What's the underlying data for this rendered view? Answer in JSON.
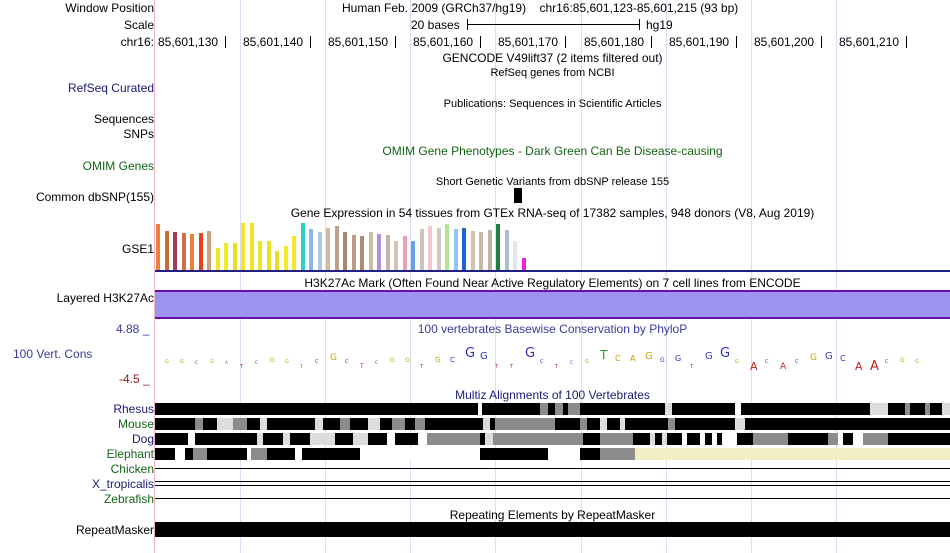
{
  "header": {
    "window_position_label": "Window Position",
    "scale_label": "Scale",
    "chrom_label": "chr16:",
    "assembly": "Human Feb. 2009 (GRCh37/hg19)",
    "position": "chr16:85,601,123-85,601,215 (93 bp)",
    "scale_text": "20 bases",
    "db": "hg19",
    "ruler_ticks": [
      "85,601,130",
      "85,601,140",
      "85,601,150",
      "85,601,160",
      "85,601,170",
      "85,601,180",
      "85,601,190",
      "85,601,200",
      "85,601,210"
    ]
  },
  "tracks": {
    "gencode_title": "GENCODE V49lift37 (2 items filtered out)",
    "refseq": {
      "label": "RefSeq Curated",
      "title": "RefSeq genes from NCBI",
      "color": "#1a1a7a"
    },
    "publications_title": "Publications: Sequences in Scientific Articles",
    "sequences_label": "Sequences",
    "snps_label": "SNPs",
    "omim": {
      "label": "OMIM Genes",
      "title": "OMIM Gene Phenotypes - Dark Green Can Be Disease-causing",
      "color": "#146414"
    },
    "dbsnp": {
      "label": "Common dbSNP(155)",
      "title": "Short Genetic Variants from dbSNP release 155"
    },
    "gtex": {
      "label": "GSE1",
      "title": "Gene Expression in 54 tissues from GTEx RNA-seq of 17382 samples, 948 donors (V8, Aug 2019)",
      "bars": [
        {
          "c": "#f07f3c",
          "h": 0.96
        },
        {
          "c": "#c86a3c",
          "h": 0.81
        },
        {
          "c": "#a03c64",
          "h": 0.79
        },
        {
          "c": "#d26e46",
          "h": 0.77
        },
        {
          "c": "#ee7d3c",
          "h": 0.74
        },
        {
          "c": "#e6421e",
          "h": 0.77
        },
        {
          "c": "#c8a07d",
          "h": 0.82
        },
        {
          "c": "#f4e61e",
          "h": 0.45
        },
        {
          "c": "#f0eb28",
          "h": 0.56
        },
        {
          "c": "#e6e11e",
          "h": 0.56
        },
        {
          "c": "#eee628",
          "h": 0.98
        },
        {
          "c": "#f0e61e",
          "h": 0.98
        },
        {
          "c": "#ebe628",
          "h": 0.6
        },
        {
          "c": "#eae221",
          "h": 0.6
        },
        {
          "c": "#e6dc2d",
          "h": 0.4
        },
        {
          "c": "#f0eb28",
          "h": 0.5
        },
        {
          "c": "#f5e628",
          "h": 0.7
        },
        {
          "c": "#2dcdc8",
          "h": 0.97
        },
        {
          "c": "#8cb4e6",
          "h": 0.86
        },
        {
          "c": "#aec8e6",
          "h": 0.8
        },
        {
          "c": "#cdb9a5",
          "h": 0.88
        },
        {
          "c": "#bea08c",
          "h": 0.92
        },
        {
          "c": "#a5876e",
          "h": 0.8
        },
        {
          "c": "#be9b82",
          "h": 0.72
        },
        {
          "c": "#a88c78",
          "h": 0.7
        },
        {
          "c": "#cdb9a5",
          "h": 0.8
        },
        {
          "c": "#b48ce6",
          "h": 0.74
        },
        {
          "c": "#c8b4a0",
          "h": 0.72
        },
        {
          "c": "#d2c3b4",
          "h": 0.6
        },
        {
          "c": "#e8a0b4",
          "h": 0.7
        },
        {
          "c": "#64a0e6",
          "h": 0.6
        },
        {
          "c": "#cdc3b9",
          "h": 0.86
        },
        {
          "c": "#f0c8c8",
          "h": 0.92
        },
        {
          "c": "#d2c8be",
          "h": 0.88
        },
        {
          "c": "#b4e696",
          "h": 0.96
        },
        {
          "c": "#8cc8f0",
          "h": 0.86
        },
        {
          "c": "#1e64d2",
          "h": 0.88
        },
        {
          "c": "#d2c3aa",
          "h": 0.82
        },
        {
          "c": "#c8b9a5",
          "h": 0.8
        },
        {
          "c": "#c3b4a0",
          "h": 0.84
        },
        {
          "c": "#208040",
          "h": 0.96
        },
        {
          "c": "#aebed2",
          "h": 0.84
        },
        {
          "c": "#e6e6e6",
          "h": 0.6
        },
        {
          "c": "#f01ee6",
          "h": 0.26
        }
      ]
    },
    "h3k27ac": {
      "label": "Layered H3K27Ac",
      "title": "H3K27Ac Mark (Often Found Near Active Regulatory Elements) on 7 cell lines from ENCODE",
      "color": "#9c94f0",
      "border_color": "#6a0dad"
    },
    "cons": {
      "label": "100 Vert. Cons",
      "ymax": "4.88 _",
      "ymin": "-4.5 _",
      "title": "100 vertebrates Basewise Conservation by PhyloP",
      "label_color": "#3a3aa0",
      "ymin_color": "#8b1a1a",
      "bases": [
        {
          "t": "G",
          "c": "#c8a000",
          "s": 5
        },
        {
          "t": "G",
          "c": "#c8a000",
          "s": 5
        },
        {
          "t": "C",
          "c": "#3030c0",
          "s": 4
        },
        {
          "t": "G",
          "c": "#c8a000",
          "s": 5
        },
        {
          "t": "A",
          "c": "#20a020",
          "s": 4
        },
        {
          "t": "T",
          "c": "#c02020",
          "s": 5
        },
        {
          "t": "C",
          "c": "#3030c0",
          "s": 4
        },
        {
          "t": "G",
          "c": "#c8a000",
          "s": 6
        },
        {
          "t": "G",
          "c": "#c8a000",
          "s": 5
        },
        {
          "t": "T",
          "c": "#c02020",
          "s": 4
        },
        {
          "t": "C",
          "c": "#3030c0",
          "s": 5
        },
        {
          "t": "G",
          "c": "#c8a000",
          "s": 9
        },
        {
          "t": "C",
          "c": "#3030c0",
          "s": 5
        },
        {
          "t": "T",
          "c": "#c02020",
          "s": 6
        },
        {
          "t": "C",
          "c": "#3030c0",
          "s": 4
        },
        {
          "t": "G",
          "c": "#c8a000",
          "s": 6
        },
        {
          "t": "G",
          "c": "#c8a000",
          "s": 6
        },
        {
          "t": "T",
          "c": "#c02020",
          "s": 5
        },
        {
          "t": "G",
          "c": "#c8a000",
          "s": 7
        },
        {
          "t": "C",
          "c": "#3030c0",
          "s": 7
        },
        {
          "t": "G",
          "c": "#3030c0",
          "s": 13
        },
        {
          "t": "G",
          "c": "#3030c0",
          "s": 10
        },
        {
          "t": "T",
          "c": "#c02020",
          "s": 5
        },
        {
          "t": "T",
          "c": "#c02020",
          "s": 5
        },
        {
          "t": "G",
          "c": "#3030c0",
          "s": 13
        },
        {
          "t": "C",
          "c": "#3030c0",
          "s": 5
        },
        {
          "t": "T",
          "c": "#c02020",
          "s": 5
        },
        {
          "t": "C",
          "c": "#3030c0",
          "s": 4
        },
        {
          "t": "G",
          "c": "#c8a000",
          "s": 5
        },
        {
          "t": "T",
          "c": "#20a020",
          "s": 12
        },
        {
          "t": "C",
          "c": "#c8a000",
          "s": 8
        },
        {
          "t": "A",
          "c": "#c8a000",
          "s": 8
        },
        {
          "t": "G",
          "c": "#c8a000",
          "s": 10
        },
        {
          "t": "G",
          "c": "#3030c0",
          "s": 6
        },
        {
          "t": "G",
          "c": "#3030c0",
          "s": 8
        },
        {
          "t": "T",
          "c": "#c02020",
          "s": 5
        },
        {
          "t": "G",
          "c": "#3030c0",
          "s": 10
        },
        {
          "t": "G",
          "c": "#3030c0",
          "s": 13
        },
        {
          "t": "G",
          "c": "#c8a000",
          "s": 5
        },
        {
          "t": "A",
          "c": "#c02020",
          "s": 11
        },
        {
          "t": "C",
          "c": "#3030c0",
          "s": 5
        },
        {
          "t": "A",
          "c": "#c02020",
          "s": 9
        },
        {
          "t": "C",
          "c": "#3030c0",
          "s": 5
        },
        {
          "t": "G",
          "c": "#c8a000",
          "s": 9
        },
        {
          "t": "G",
          "c": "#3030c0",
          "s": 10
        },
        {
          "t": "C",
          "c": "#3030c0",
          "s": 8
        },
        {
          "t": "A",
          "c": "#c02020",
          "s": 11
        },
        {
          "t": "A",
          "c": "#c02020",
          "s": 13
        },
        {
          "t": "C",
          "c": "#3030c0",
          "s": 5
        },
        {
          "t": "G",
          "c": "#c8a000",
          "s": 6
        },
        {
          "t": "G",
          "c": "#c8a000",
          "s": 5
        }
      ]
    },
    "multiz": {
      "title": "Multiz Alignments of 100 Vertebrates",
      "species_color": "#1a1a7a",
      "species": [
        {
          "name": "Rhesus",
          "color": "#1a1a7a",
          "segs": [
            [
              0,
              323,
              "#000"
            ],
            [
              323,
              327,
              "#fff"
            ],
            [
              327,
              385,
              "#000"
            ],
            [
              385,
              393,
              "#8c8c8c"
            ],
            [
              393,
              400,
              "#000"
            ],
            [
              400,
              408,
              "#8c8c8c"
            ],
            [
              408,
              413,
              "#000"
            ],
            [
              413,
              425,
              "#8c8c8c"
            ],
            [
              425,
              510,
              "#000"
            ],
            [
              510,
              517,
              "#dcdcdc"
            ],
            [
              517,
              580,
              "#000"
            ],
            [
              580,
              586,
              "#fff"
            ],
            [
              586,
              715,
              "#000"
            ],
            [
              715,
              733,
              "#dcdcdc"
            ],
            [
              733,
              750,
              "#000"
            ],
            [
              750,
              755,
              "#8c8c8c"
            ],
            [
              755,
              770,
              "#000"
            ],
            [
              770,
              775,
              "#8c8c8c"
            ],
            [
              775,
              787,
              "#000"
            ],
            [
              787,
              795,
              "#dcdcdc"
            ]
          ]
        },
        {
          "name": "Mouse",
          "color": "#146414",
          "segs": [
            [
              0,
              40,
              "#000"
            ],
            [
              40,
              48,
              "#8c8c8c"
            ],
            [
              48,
              62,
              "#000"
            ],
            [
              62,
              78,
              "#dcdcdc"
            ],
            [
              78,
              92,
              "#8c8c8c"
            ],
            [
              92,
              105,
              "#000"
            ],
            [
              105,
              112,
              "#dcdcdc"
            ],
            [
              112,
              160,
              "#000"
            ],
            [
              160,
              168,
              "#dcdcdc"
            ],
            [
              168,
              185,
              "#000"
            ],
            [
              185,
              195,
              "#8c8c8c"
            ],
            [
              195,
              213,
              "#000"
            ],
            [
              213,
              225,
              "#dcdcdc"
            ],
            [
              225,
              237,
              "#000"
            ],
            [
              237,
              250,
              "#8c8c8c"
            ],
            [
              250,
              260,
              "#000"
            ],
            [
              260,
              270,
              "#8c8c8c"
            ],
            [
              270,
              328,
              "#000"
            ],
            [
              328,
              335,
              "#dcdcdc"
            ],
            [
              335,
              340,
              "#000"
            ],
            [
              340,
              400,
              "#8c8c8c"
            ],
            [
              400,
              425,
              "#000"
            ],
            [
              425,
              432,
              "#8c8c8c"
            ],
            [
              432,
              445,
              "#000"
            ],
            [
              445,
              452,
              "#dcdcdc"
            ],
            [
              452,
              465,
              "#000"
            ],
            [
              465,
              470,
              "#dcdcdc"
            ],
            [
              470,
              513,
              "#000"
            ],
            [
              513,
              520,
              "#8c8c8c"
            ],
            [
              520,
              580,
              "#000"
            ],
            [
              580,
              590,
              "#dcdcdc"
            ],
            [
              590,
              795,
              "#000"
            ]
          ]
        },
        {
          "name": "Dog",
          "color": "#1a1a7a",
          "segs": [
            [
              0,
              33,
              "#000"
            ],
            [
              33,
              40,
              "#fff"
            ],
            [
              40,
              102,
              "#000"
            ],
            [
              102,
              108,
              "#dcdcdc"
            ],
            [
              108,
              128,
              "#000"
            ],
            [
              128,
              135,
              "#dcdcdc"
            ],
            [
              135,
              155,
              "#000"
            ],
            [
              155,
              180,
              "#dcdcdc"
            ],
            [
              180,
              198,
              "#000"
            ],
            [
              198,
              213,
              "#dcdcdc"
            ],
            [
              213,
              232,
              "#000"
            ],
            [
              232,
              240,
              "#fff"
            ],
            [
              240,
              263,
              "#000"
            ],
            [
              263,
              272,
              "#fff"
            ],
            [
              272,
              325,
              "#8c8c8c"
            ],
            [
              325,
              330,
              "#000"
            ],
            [
              330,
              338,
              "#dcdcdc"
            ],
            [
              338,
              428,
              "#8c8c8c"
            ],
            [
              428,
              445,
              "#000"
            ],
            [
              445,
              478,
              "#8c8c8c"
            ],
            [
              478,
              495,
              "#000"
            ],
            [
              495,
              500,
              "#dcdcdc"
            ],
            [
              500,
              507,
              "#000"
            ],
            [
              507,
              512,
              "#dcdcdc"
            ],
            [
              512,
              527,
              "#000"
            ],
            [
              527,
              532,
              "#fff"
            ],
            [
              532,
              545,
              "#000"
            ],
            [
              545,
              550,
              "#fff"
            ],
            [
              550,
              557,
              "#000"
            ],
            [
              557,
              562,
              "#fff"
            ],
            [
              562,
              567,
              "#000"
            ],
            [
              567,
              582,
              "#fff"
            ],
            [
              582,
              598,
              "#000"
            ],
            [
              598,
              633,
              "#8c8c8c"
            ],
            [
              633,
              673,
              "#000"
            ],
            [
              673,
              683,
              "#8c8c8c"
            ],
            [
              683,
              688,
              "#fff"
            ],
            [
              688,
              698,
              "#000"
            ],
            [
              698,
              708,
              "#fff"
            ],
            [
              708,
              733,
              "#8c8c8c"
            ],
            [
              733,
              795,
              "#000"
            ]
          ]
        },
        {
          "name": "Elephant",
          "color": "#146414",
          "segs": [
            [
              0,
              20,
              "#000"
            ],
            [
              20,
              30,
              "#fff"
            ],
            [
              30,
              38,
              "#000"
            ],
            [
              38,
              52,
              "#8c8c8c"
            ],
            [
              52,
              92,
              "#000"
            ],
            [
              92,
              96,
              "#fff"
            ],
            [
              96,
              112,
              "#8c8c8c"
            ],
            [
              112,
              140,
              "#000"
            ],
            [
              140,
              147,
              "#fff"
            ],
            [
              147,
              205,
              "#000"
            ],
            [
              205,
              325,
              "#fff"
            ],
            [
              325,
              393,
              "#000"
            ],
            [
              393,
              425,
              "#fff"
            ],
            [
              425,
              445,
              "#000"
            ],
            [
              445,
              480,
              "#8c8c8c"
            ],
            [
              480,
              795,
              "#f3eec4"
            ]
          ]
        },
        {
          "name": "Chicken",
          "color": "#146414",
          "lines": 1
        },
        {
          "name": "X_tropicalis",
          "color": "#1a1a7a",
          "lines": 2
        },
        {
          "name": "Zebrafish",
          "color": "#146414",
          "lines": 1
        }
      ]
    },
    "repeatmasker": {
      "label": "RepeatMasker",
      "title": "Repeating Elements by RepeatMasker"
    }
  }
}
